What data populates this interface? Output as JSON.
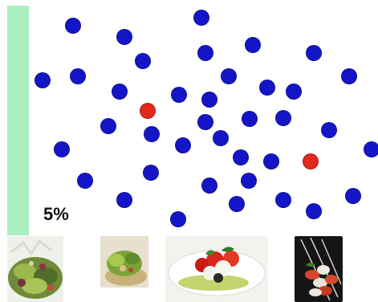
{
  "colors": {
    "side_bar": "#a9efc0",
    "common_dot": "#1515c8",
    "rare_dot": "#e2291b"
  },
  "rate_label": "5%",
  "dots": {
    "blue_count": 38,
    "red_count": 2
  },
  "photos": [
    {
      "icon": "salad-bowl-photo-icon"
    },
    {
      "icon": "salad-dish-photo-icon"
    },
    {
      "icon": "caprese-plate-photo-icon"
    },
    {
      "icon": "skewers-photo-icon"
    }
  ]
}
